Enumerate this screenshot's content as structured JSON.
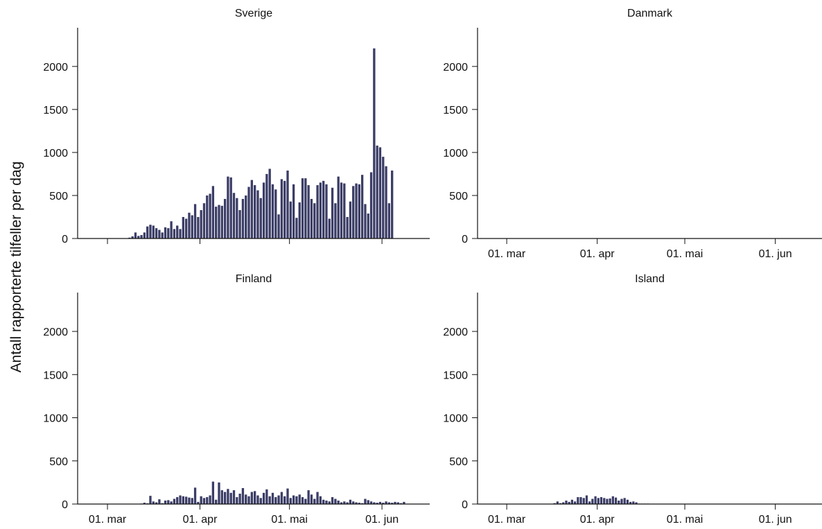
{
  "chart_data": {
    "type": "bar",
    "ylabel": "Antall rapporterte tilfeller per dag",
    "ylim": [
      0,
      2450
    ],
    "yticks": [
      0,
      500,
      1000,
      1500,
      2000
    ],
    "x_start_date": "2020-02-20",
    "xlim_days": [
      0,
      118
    ],
    "xticks": [
      {
        "label": "01. mar",
        "day": 10
      },
      {
        "label": "01. apr",
        "day": 41
      },
      {
        "label": "01. mai",
        "day": 71
      },
      {
        "label": "01. jun",
        "day": 102
      }
    ],
    "bar_color": "#3b3d66",
    "panels": [
      {
        "title": "Sverige",
        "show_x_tick_labels": false,
        "first_day": 0,
        "values": [
          0,
          0,
          0,
          0,
          0,
          0,
          0,
          0,
          0,
          0,
          0,
          0,
          0,
          0,
          0,
          0,
          0,
          10,
          25,
          70,
          30,
          40,
          70,
          140,
          160,
          150,
          120,
          100,
          70,
          130,
          120,
          200,
          110,
          150,
          110,
          250,
          230,
          300,
          270,
          400,
          250,
          330,
          410,
          500,
          520,
          610,
          370,
          390,
          380,
          460,
          720,
          710,
          530,
          470,
          330,
          460,
          500,
          600,
          680,
          620,
          560,
          470,
          650,
          750,
          810,
          630,
          570,
          280,
          690,
          670,
          790,
          430,
          630,
          240,
          420,
          700,
          700,
          620,
          460,
          410,
          620,
          650,
          670,
          630,
          230,
          590,
          410,
          720,
          650,
          640,
          250,
          430,
          610,
          640,
          630,
          740,
          400,
          290,
          770,
          2210,
          1080,
          1060,
          950,
          840,
          410,
          790
        ]
      },
      {
        "title": "Danmark",
        "show_x_tick_labels": true,
        "first_day": 0,
        "values": [
          0,
          0,
          0,
          0,
          0,
          0,
          0,
          0,
          0,
          0,
          0,
          0,
          0,
          0,
          0,
          0,
          0,
          0,
          0,
          0,
          0,
          0,
          0,
          0,
          0,
          0,
          0,
          0,
          0,
          0,
          0,
          0,
          0,
          0,
          0,
          0,
          0,
          0,
          0,
          0,
          0,
          0,
          0,
          0,
          0,
          0,
          0,
          0,
          0,
          0,
          0,
          0,
          0,
          0,
          0,
          0,
          0,
          0,
          0,
          0,
          0,
          0,
          0,
          0,
          0,
          0,
          0,
          0,
          0,
          0,
          0,
          0,
          0,
          0,
          0,
          0,
          0,
          0,
          0,
          0,
          0,
          0,
          0,
          0,
          0,
          0,
          0,
          0,
          0,
          0,
          0,
          0,
          0,
          0,
          0,
          0,
          0,
          0,
          0,
          0,
          0,
          0,
          0,
          0,
          0,
          0,
          0,
          0,
          0,
          0,
          0,
          0,
          0,
          0,
          0,
          0,
          0,
          0,
          0,
          0
        ]
      },
      {
        "title": "Finland",
        "show_x_tick_labels": true,
        "first_day": 0,
        "values": [
          0,
          0,
          0,
          0,
          0,
          0,
          0,
          0,
          0,
          0,
          0,
          0,
          0,
          0,
          0,
          0,
          0,
          0,
          0,
          0,
          0,
          5,
          15,
          8,
          95,
          30,
          20,
          55,
          10,
          40,
          45,
          30,
          60,
          80,
          100,
          90,
          85,
          75,
          70,
          190,
          25,
          90,
          70,
          80,
          100,
          260,
          50,
          250,
          160,
          140,
          175,
          130,
          160,
          80,
          120,
          185,
          110,
          90,
          140,
          150,
          100,
          70,
          130,
          170,
          90,
          130,
          80,
          100,
          140,
          90,
          180,
          70,
          100,
          90,
          110,
          80,
          60,
          160,
          110,
          60,
          140,
          90,
          50,
          40,
          30,
          80,
          60,
          40,
          20,
          30,
          20,
          50,
          30,
          20,
          15,
          10,
          60,
          45,
          30,
          20,
          15,
          25,
          15,
          30,
          20,
          15,
          25,
          20,
          10,
          25
        ]
      },
      {
        "title": "Island",
        "show_x_tick_labels": true,
        "first_day": 0,
        "values": [
          0,
          0,
          0,
          0,
          0,
          0,
          0,
          0,
          0,
          0,
          0,
          0,
          0,
          0,
          0,
          0,
          0,
          0,
          0,
          0,
          0,
          0,
          0,
          0,
          0,
          0,
          10,
          30,
          10,
          20,
          40,
          25,
          50,
          30,
          80,
          80,
          70,
          100,
          30,
          60,
          90,
          70,
          80,
          70,
          60,
          65,
          90,
          75,
          40,
          60,
          70,
          50,
          25,
          30,
          20,
          5,
          5,
          5,
          5,
          0,
          0,
          0,
          0,
          0,
          0,
          0,
          0,
          0,
          0,
          0,
          0,
          0,
          0,
          0,
          0,
          0,
          0,
          0,
          0,
          0,
          0,
          0,
          0,
          0,
          0,
          0,
          0,
          0,
          0,
          0,
          0,
          0,
          0,
          0,
          0,
          0,
          0,
          0,
          0,
          0,
          0,
          0,
          0,
          0,
          0,
          0,
          0,
          0,
          0,
          0
        ]
      }
    ]
  }
}
